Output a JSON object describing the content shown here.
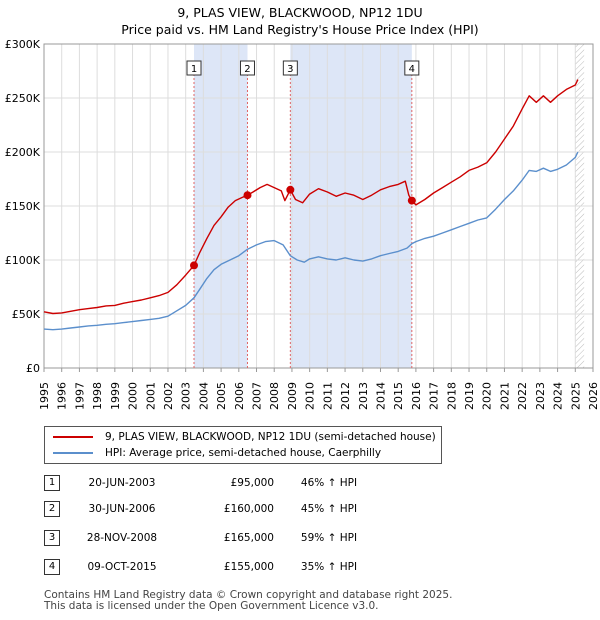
{
  "title": {
    "line1": "9, PLAS VIEW, BLACKWOOD, NP12 1DU",
    "line2": "Price paid vs. HM Land Registry's House Price Index (HPI)"
  },
  "chart_data": {
    "type": "line",
    "x_range": [
      1995,
      2026
    ],
    "ylim": [
      0,
      300000
    ],
    "y_ticks": [
      {
        "value": 0,
        "label": "£0"
      },
      {
        "value": 50000,
        "label": "£50K"
      },
      {
        "value": 100000,
        "label": "£100K"
      },
      {
        "value": 150000,
        "label": "£150K"
      },
      {
        "value": 200000,
        "label": "£200K"
      },
      {
        "value": 250000,
        "label": "£250K"
      },
      {
        "value": 300000,
        "label": "£300K"
      }
    ],
    "x_ticks": [
      "1995",
      "1996",
      "1997",
      "1998",
      "1999",
      "2000",
      "2001",
      "2002",
      "2003",
      "2004",
      "2005",
      "2006",
      "2007",
      "2008",
      "2009",
      "2010",
      "2011",
      "2012",
      "2013",
      "2014",
      "2015",
      "2016",
      "2017",
      "2018",
      "2019",
      "2020",
      "2021",
      "2022",
      "2023",
      "2024",
      "2025",
      "2026"
    ],
    "grid": true,
    "forecast_from": 2025.0,
    "colors": {
      "price": "#cc0000",
      "hpi": "#5b8fcc",
      "shade": "#dde6f7",
      "vline": "#e06666"
    },
    "series": [
      {
        "name": "9, PLAS VIEW, BLACKWOOD, NP12 1DU (semi-detached house)",
        "color": "#cc0000",
        "points": [
          [
            1995.0,
            52000
          ],
          [
            1995.5,
            50500
          ],
          [
            1996.0,
            51000
          ],
          [
            1996.5,
            52500
          ],
          [
            1997.0,
            54000
          ],
          [
            1997.5,
            55000
          ],
          [
            1998.0,
            56000
          ],
          [
            1998.5,
            57500
          ],
          [
            1999.0,
            58000
          ],
          [
            1999.5,
            60000
          ],
          [
            2000.0,
            61500
          ],
          [
            2000.5,
            63000
          ],
          [
            2001.0,
            65000
          ],
          [
            2001.5,
            67000
          ],
          [
            2002.0,
            70000
          ],
          [
            2002.5,
            77000
          ],
          [
            2003.0,
            86000
          ],
          [
            2003.47,
            95000
          ],
          [
            2003.8,
            107000
          ],
          [
            2004.2,
            120000
          ],
          [
            2004.6,
            132000
          ],
          [
            2005.0,
            140000
          ],
          [
            2005.4,
            149000
          ],
          [
            2005.8,
            155000
          ],
          [
            2006.2,
            158000
          ],
          [
            2006.49,
            160000
          ],
          [
            2006.8,
            163000
          ],
          [
            2007.2,
            167000
          ],
          [
            2007.6,
            170000
          ],
          [
            2008.0,
            167000
          ],
          [
            2008.4,
            164000
          ],
          [
            2008.6,
            155000
          ],
          [
            2008.91,
            165000
          ],
          [
            2009.2,
            156000
          ],
          [
            2009.6,
            153000
          ],
          [
            2010.0,
            161000
          ],
          [
            2010.5,
            166000
          ],
          [
            2011.0,
            163000
          ],
          [
            2011.5,
            159000
          ],
          [
            2012.0,
            162000
          ],
          [
            2012.5,
            160000
          ],
          [
            2013.0,
            156000
          ],
          [
            2013.5,
            160000
          ],
          [
            2014.0,
            165000
          ],
          [
            2014.5,
            168000
          ],
          [
            2015.0,
            170000
          ],
          [
            2015.4,
            173000
          ],
          [
            2015.6,
            160000
          ],
          [
            2015.77,
            155000
          ],
          [
            2016.0,
            151000
          ],
          [
            2016.5,
            156000
          ],
          [
            2017.0,
            162000
          ],
          [
            2017.5,
            167000
          ],
          [
            2018.0,
            172000
          ],
          [
            2018.5,
            177000
          ],
          [
            2019.0,
            183000
          ],
          [
            2019.5,
            186000
          ],
          [
            2020.0,
            190000
          ],
          [
            2020.5,
            200000
          ],
          [
            2021.0,
            212000
          ],
          [
            2021.5,
            224000
          ],
          [
            2022.0,
            240000
          ],
          [
            2022.4,
            252000
          ],
          [
            2022.8,
            246000
          ],
          [
            2023.2,
            252000
          ],
          [
            2023.6,
            246000
          ],
          [
            2024.0,
            252000
          ],
          [
            2024.5,
            258000
          ],
          [
            2025.0,
            262000
          ],
          [
            2025.15,
            267000
          ]
        ]
      },
      {
        "name": "HPI: Average price, semi-detached house, Caerphilly",
        "color": "#5b8fcc",
        "points": [
          [
            1995.0,
            36000
          ],
          [
            1995.5,
            35500
          ],
          [
            1996.0,
            36000
          ],
          [
            1996.5,
            37000
          ],
          [
            1997.0,
            38000
          ],
          [
            1997.5,
            39000
          ],
          [
            1998.0,
            39500
          ],
          [
            1998.5,
            40500
          ],
          [
            1999.0,
            41000
          ],
          [
            1999.5,
            42000
          ],
          [
            2000.0,
            43000
          ],
          [
            2000.5,
            44000
          ],
          [
            2001.0,
            45000
          ],
          [
            2001.5,
            46000
          ],
          [
            2002.0,
            48000
          ],
          [
            2002.5,
            53000
          ],
          [
            2003.0,
            58000
          ],
          [
            2003.47,
            65000
          ],
          [
            2003.8,
            73000
          ],
          [
            2004.2,
            83000
          ],
          [
            2004.6,
            91000
          ],
          [
            2005.0,
            96000
          ],
          [
            2005.5,
            100000
          ],
          [
            2006.0,
            104000
          ],
          [
            2006.49,
            110000
          ],
          [
            2007.0,
            114000
          ],
          [
            2007.5,
            117000
          ],
          [
            2008.0,
            118000
          ],
          [
            2008.5,
            114000
          ],
          [
            2008.91,
            104000
          ],
          [
            2009.3,
            100000
          ],
          [
            2009.7,
            98000
          ],
          [
            2010.0,
            101000
          ],
          [
            2010.5,
            103000
          ],
          [
            2011.0,
            101000
          ],
          [
            2011.5,
            100000
          ],
          [
            2012.0,
            102000
          ],
          [
            2012.5,
            100000
          ],
          [
            2013.0,
            99000
          ],
          [
            2013.5,
            101000
          ],
          [
            2014.0,
            104000
          ],
          [
            2014.5,
            106000
          ],
          [
            2015.0,
            108000
          ],
          [
            2015.5,
            111000
          ],
          [
            2015.77,
            115000
          ],
          [
            2016.0,
            117000
          ],
          [
            2016.5,
            120000
          ],
          [
            2017.0,
            122000
          ],
          [
            2017.5,
            125000
          ],
          [
            2018.0,
            128000
          ],
          [
            2018.5,
            131000
          ],
          [
            2019.0,
            134000
          ],
          [
            2019.5,
            137000
          ],
          [
            2020.0,
            139000
          ],
          [
            2020.5,
            147000
          ],
          [
            2021.0,
            156000
          ],
          [
            2021.5,
            164000
          ],
          [
            2022.0,
            174000
          ],
          [
            2022.4,
            183000
          ],
          [
            2022.8,
            182000
          ],
          [
            2023.2,
            185000
          ],
          [
            2023.6,
            182000
          ],
          [
            2024.0,
            184000
          ],
          [
            2024.5,
            188000
          ],
          [
            2025.0,
            195000
          ],
          [
            2025.15,
            200000
          ]
        ]
      }
    ],
    "markers": [
      {
        "label": "1",
        "x": 2003.47,
        "y": 95000
      },
      {
        "label": "2",
        "x": 2006.49,
        "y": 160000
      },
      {
        "label": "3",
        "x": 2008.91,
        "y": 165000
      },
      {
        "label": "4",
        "x": 2015.77,
        "y": 155000
      }
    ],
    "shaded_ranges": [
      [
        2003.47,
        2006.49
      ],
      [
        2008.91,
        2015.77
      ]
    ]
  },
  "legend": {
    "price_label": "9, PLAS VIEW, BLACKWOOD, NP12 1DU (semi-detached house)",
    "hpi_label": "HPI: Average price, semi-detached house, Caerphilly"
  },
  "sales": [
    {
      "num": "1",
      "date": "20-JUN-2003",
      "price": "£95,000",
      "hpi": "46% ↑ HPI"
    },
    {
      "num": "2",
      "date": "30-JUN-2006",
      "price": "£160,000",
      "hpi": "45% ↑ HPI"
    },
    {
      "num": "3",
      "date": "28-NOV-2008",
      "price": "£165,000",
      "hpi": "59% ↑ HPI"
    },
    {
      "num": "4",
      "date": "09-OCT-2015",
      "price": "£155,000",
      "hpi": "35% ↑ HPI"
    }
  ],
  "footer": {
    "line1": "Contains HM Land Registry data © Crown copyright and database right 2025.",
    "line2": "This data is licensed under the Open Government Licence v3.0."
  }
}
